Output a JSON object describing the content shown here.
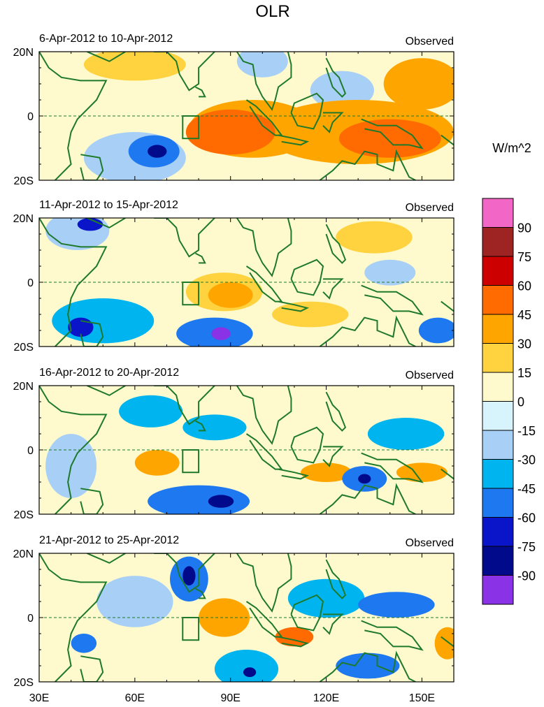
{
  "title": "OLR",
  "units": "W/m^2",
  "chart_data": {
    "type": "heatmap",
    "variable": "OLR anomaly",
    "units": "W/m^2",
    "xlim": [
      30,
      160
    ],
    "ylim": [
      -20,
      20
    ],
    "x_ticks": [
      30,
      60,
      90,
      120,
      150
    ],
    "x_tick_labels": [
      "30E",
      "60E",
      "90E",
      "120E",
      "150E"
    ],
    "y_ticks": [
      20,
      0,
      -20
    ],
    "y_tick_labels": [
      "20N",
      "0",
      "20S"
    ],
    "equator_line": "dashed",
    "box_region": {
      "lon": [
        75,
        80
      ],
      "lat": [
        -7,
        0
      ]
    },
    "contour_levels": [
      -90,
      -75,
      -60,
      -45,
      -30,
      -15,
      0,
      15,
      30,
      45,
      60,
      75,
      90
    ],
    "colorbar_labels": [
      "90",
      "75",
      "60",
      "45",
      "30",
      "15",
      "0",
      "-15",
      "-30",
      "-45",
      "-60",
      "-75",
      "-90"
    ],
    "colorbar_colors": [
      "#f266c6",
      "#9e2424",
      "#cc0000",
      "#ff6b00",
      "#ffa500",
      "#ffd23f",
      "#fffacd",
      "#d7f3fb",
      "#a8d0f7",
      "#00b4f0",
      "#1e78f0",
      "#0a14c8",
      "#000a8a",
      "#8a32e6"
    ],
    "panels": [
      {
        "title": "6-Apr-2012 to 10-Apr-2012",
        "tag": "Observed",
        "anomalies": [
          {
            "lon": 90,
            "lat": -5,
            "rx": 14,
            "ry": 7,
            "value": 45
          },
          {
            "lon": 97,
            "lat": -4,
            "rx": 20,
            "ry": 9,
            "value": 30
          },
          {
            "lon": 140,
            "lat": -7,
            "rx": 16,
            "ry": 6,
            "value": 45
          },
          {
            "lon": 130,
            "lat": -5,
            "rx": 30,
            "ry": 10,
            "value": 30
          },
          {
            "lon": 66,
            "lat": -11,
            "rx": 8,
            "ry": 5,
            "value": -45
          },
          {
            "lon": 67,
            "lat": -11,
            "rx": 3,
            "ry": 2,
            "value": -75
          },
          {
            "lon": 60,
            "lat": -13,
            "rx": 16,
            "ry": 8,
            "value": -15
          },
          {
            "lon": 60,
            "lat": 16,
            "rx": 16,
            "ry": 5,
            "value": 15
          },
          {
            "lon": 150,
            "lat": 10,
            "rx": 12,
            "ry": 8,
            "value": 30
          },
          {
            "lon": 125,
            "lat": 8,
            "rx": 10,
            "ry": 6,
            "value": -15
          },
          {
            "lon": 100,
            "lat": 17,
            "rx": 8,
            "ry": 5,
            "value": -15
          }
        ]
      },
      {
        "title": "11-Apr-2012 to 15-Apr-2012",
        "tag": "Observed",
        "anomalies": [
          {
            "lon": 50,
            "lat": -12,
            "rx": 16,
            "ry": 7,
            "value": -30
          },
          {
            "lon": 43,
            "lat": -14,
            "rx": 4,
            "ry": 3,
            "value": -60
          },
          {
            "lon": 85,
            "lat": -16,
            "rx": 12,
            "ry": 5,
            "value": -45
          },
          {
            "lon": 87,
            "lat": -16,
            "rx": 3,
            "ry": 2,
            "value": -90
          },
          {
            "lon": 155,
            "lat": -15,
            "rx": 6,
            "ry": 4,
            "value": -45
          },
          {
            "lon": 42,
            "lat": 16,
            "rx": 10,
            "ry": 6,
            "value": -15
          },
          {
            "lon": 46,
            "lat": 18,
            "rx": 4,
            "ry": 2,
            "value": -60
          },
          {
            "lon": 90,
            "lat": -4,
            "rx": 7,
            "ry": 4,
            "value": 30
          },
          {
            "lon": 88,
            "lat": -3,
            "rx": 12,
            "ry": 6,
            "value": 15
          },
          {
            "lon": 135,
            "lat": 14,
            "rx": 12,
            "ry": 5,
            "value": 15
          },
          {
            "lon": 115,
            "lat": -10,
            "rx": 12,
            "ry": 4,
            "value": 15
          },
          {
            "lon": 140,
            "lat": 3,
            "rx": 8,
            "ry": 4,
            "value": -15
          }
        ]
      },
      {
        "title": "16-Apr-2012 to 20-Apr-2012",
        "tag": "Observed",
        "anomalies": [
          {
            "lon": 65,
            "lat": 12,
            "rx": 10,
            "ry": 5,
            "value": -30
          },
          {
            "lon": 85,
            "lat": 7,
            "rx": 10,
            "ry": 4,
            "value": -30
          },
          {
            "lon": 80,
            "lat": -16,
            "rx": 16,
            "ry": 5,
            "value": -45
          },
          {
            "lon": 87,
            "lat": -16,
            "rx": 4,
            "ry": 2,
            "value": -75
          },
          {
            "lon": 132,
            "lat": -9,
            "rx": 7,
            "ry": 4,
            "value": -45
          },
          {
            "lon": 132,
            "lat": -9,
            "rx": 2,
            "ry": 1.5,
            "value": -75
          },
          {
            "lon": 145,
            "lat": 5,
            "rx": 12,
            "ry": 5,
            "value": -30
          },
          {
            "lon": 67,
            "lat": -4,
            "rx": 7,
            "ry": 4,
            "value": 30
          },
          {
            "lon": 120,
            "lat": -7,
            "rx": 8,
            "ry": 3,
            "value": 30
          },
          {
            "lon": 150,
            "lat": -7,
            "rx": 8,
            "ry": 3,
            "value": 30
          },
          {
            "lon": 40,
            "lat": -5,
            "rx": 8,
            "ry": 10,
            "value": -15
          }
        ]
      },
      {
        "title": "21-Apr-2012 to 25-Apr-2012",
        "tag": "Observed",
        "anomalies": [
          {
            "lon": 77,
            "lat": 12,
            "rx": 6,
            "ry": 7,
            "value": -45
          },
          {
            "lon": 77,
            "lat": 13,
            "rx": 2,
            "ry": 3,
            "value": -75
          },
          {
            "lon": 95,
            "lat": -16,
            "rx": 10,
            "ry": 6,
            "value": -30
          },
          {
            "lon": 96,
            "lat": -17,
            "rx": 2,
            "ry": 1.5,
            "value": -75
          },
          {
            "lon": 133,
            "lat": -15,
            "rx": 10,
            "ry": 4,
            "value": -45
          },
          {
            "lon": 142,
            "lat": 4,
            "rx": 12,
            "ry": 4,
            "value": -45
          },
          {
            "lon": 44,
            "lat": -8,
            "rx": 4,
            "ry": 3,
            "value": -45
          },
          {
            "lon": 120,
            "lat": 6,
            "rx": 12,
            "ry": 6,
            "value": -30
          },
          {
            "lon": 110,
            "lat": -6,
            "rx": 6,
            "ry": 3,
            "value": 45
          },
          {
            "lon": 88,
            "lat": 0,
            "rx": 8,
            "ry": 6,
            "value": 30
          },
          {
            "lon": 158,
            "lat": -8,
            "rx": 4,
            "ry": 5,
            "value": 30
          },
          {
            "lon": 60,
            "lat": 5,
            "rx": 12,
            "ry": 8,
            "value": -15
          }
        ]
      }
    ]
  }
}
